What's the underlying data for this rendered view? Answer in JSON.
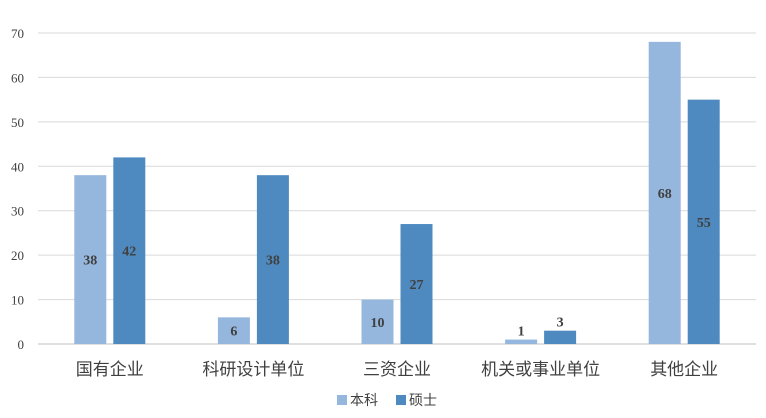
{
  "chart_data": {
    "type": "bar",
    "title": "",
    "xlabel": "",
    "ylabel": "",
    "ylim": [
      0,
      70
    ],
    "yticks": [
      0,
      10,
      20,
      30,
      40,
      50,
      60,
      70
    ],
    "grid": true,
    "legend_position": "bottom",
    "categories": [
      "国有企业",
      "科研设计单位",
      "三资企业",
      "机关或事业单位",
      "其他企业"
    ],
    "series": [
      {
        "name": "本科",
        "color": "#95b7de",
        "values": [
          38,
          6,
          10,
          1,
          68
        ]
      },
      {
        "name": "硕士",
        "color": "#4e8ac0",
        "values": [
          42,
          38,
          27,
          3,
          55
        ]
      }
    ]
  }
}
